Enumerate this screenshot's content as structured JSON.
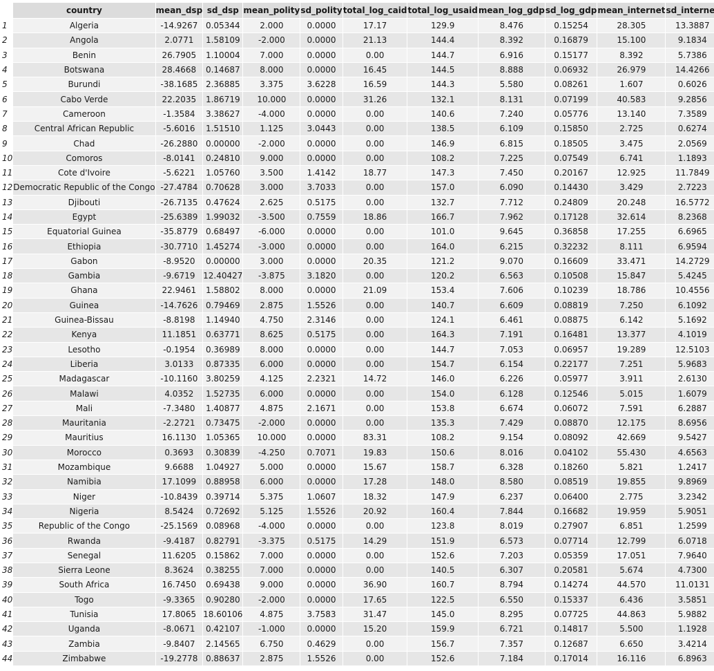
{
  "table": {
    "columns": [
      "country",
      "mean_dsp",
      "sd_dsp",
      "mean_polity",
      "sd_polity",
      "total_log_caid",
      "total_log_usaid",
      "mean_log_gdp",
      "sd_log_gdp",
      "mean_internet",
      "sd_internet"
    ],
    "rows": [
      [
        "1",
        "Algeria",
        "-14.9267",
        "0.05344",
        "2.000",
        "0.0000",
        "17.17",
        "129.9",
        "8.476",
        "0.15254",
        "28.305",
        "13.3887"
      ],
      [
        "2",
        "Angola",
        "2.0771",
        "1.58109",
        "-2.000",
        "0.0000",
        "21.13",
        "144.4",
        "8.392",
        "0.16879",
        "15.100",
        "9.1834"
      ],
      [
        "3",
        "Benin",
        "26.7905",
        "1.10004",
        "7.000",
        "0.0000",
        "0.00",
        "144.7",
        "6.916",
        "0.15177",
        "8.392",
        "5.7386"
      ],
      [
        "4",
        "Botswana",
        "28.4668",
        "0.14687",
        "8.000",
        "0.0000",
        "16.45",
        "144.5",
        "8.888",
        "0.06932",
        "26.979",
        "14.4266"
      ],
      [
        "5",
        "Burundi",
        "-38.1685",
        "2.36885",
        "3.375",
        "3.6228",
        "16.59",
        "144.3",
        "5.580",
        "0.08261",
        "1.607",
        "0.6026"
      ],
      [
        "6",
        "Cabo Verde",
        "22.2035",
        "1.86719",
        "10.000",
        "0.0000",
        "31.26",
        "132.1",
        "8.131",
        "0.07199",
        "40.583",
        "9.2856"
      ],
      [
        "7",
        "Cameroon",
        "-1.3584",
        "3.38627",
        "-4.000",
        "0.0000",
        "0.00",
        "140.6",
        "7.240",
        "0.05776",
        "13.140",
        "7.3589"
      ],
      [
        "8",
        "Central African Republic",
        "-5.6016",
        "1.51510",
        "1.125",
        "3.0443",
        "0.00",
        "138.5",
        "6.109",
        "0.15850",
        "2.725",
        "0.6274"
      ],
      [
        "9",
        "Chad",
        "-26.2880",
        "0.00000",
        "-2.000",
        "0.0000",
        "0.00",
        "146.9",
        "6.815",
        "0.18505",
        "3.475",
        "2.0569"
      ],
      [
        "10",
        "Comoros",
        "-8.0141",
        "0.24810",
        "9.000",
        "0.0000",
        "0.00",
        "108.2",
        "7.225",
        "0.07549",
        "6.741",
        "1.1893"
      ],
      [
        "11",
        "Cote d'Ivoire",
        "-5.6221",
        "1.05760",
        "3.500",
        "1.4142",
        "18.77",
        "147.3",
        "7.450",
        "0.20167",
        "12.925",
        "11.7849"
      ],
      [
        "12",
        "Democratic Republic of the Congo",
        "-27.4784",
        "0.70628",
        "3.000",
        "3.7033",
        "0.00",
        "157.0",
        "6.090",
        "0.14430",
        "3.429",
        "2.7223"
      ],
      [
        "13",
        "Djibouti",
        "-26.7135",
        "0.47624",
        "2.625",
        "0.5175",
        "0.00",
        "132.7",
        "7.712",
        "0.24809",
        "20.248",
        "16.5772"
      ],
      [
        "14",
        "Egypt",
        "-25.6389",
        "1.99032",
        "-3.500",
        "0.7559",
        "18.86",
        "166.7",
        "7.962",
        "0.17128",
        "32.614",
        "8.2368"
      ],
      [
        "15",
        "Equatorial Guinea",
        "-35.8779",
        "0.68497",
        "-6.000",
        "0.0000",
        "0.00",
        "101.0",
        "9.645",
        "0.36858",
        "17.255",
        "6.6965"
      ],
      [
        "16",
        "Ethiopia",
        "-30.7710",
        "1.45274",
        "-3.000",
        "0.0000",
        "0.00",
        "164.0",
        "6.215",
        "0.32232",
        "8.111",
        "6.9594"
      ],
      [
        "17",
        "Gabon",
        "-8.9520",
        "0.00000",
        "3.000",
        "0.0000",
        "20.35",
        "121.2",
        "9.070",
        "0.16609",
        "33.471",
        "14.2729"
      ],
      [
        "18",
        "Gambia",
        "-9.6719",
        "12.40427",
        "-3.875",
        "3.1820",
        "0.00",
        "120.2",
        "6.563",
        "0.10508",
        "15.847",
        "5.4245"
      ],
      [
        "19",
        "Ghana",
        "22.9461",
        "1.58802",
        "8.000",
        "0.0000",
        "21.09",
        "153.4",
        "7.606",
        "0.10239",
        "18.786",
        "10.4556"
      ],
      [
        "20",
        "Guinea",
        "-14.7626",
        "0.79469",
        "2.875",
        "1.5526",
        "0.00",
        "140.7",
        "6.609",
        "0.08819",
        "7.250",
        "6.1092"
      ],
      [
        "21",
        "Guinea-Bissau",
        "-8.8198",
        "1.14940",
        "4.750",
        "2.3146",
        "0.00",
        "124.1",
        "6.461",
        "0.08875",
        "6.142",
        "5.1692"
      ],
      [
        "22",
        "Kenya",
        "11.1851",
        "0.63771",
        "8.625",
        "0.5175",
        "0.00",
        "164.3",
        "7.191",
        "0.16481",
        "13.377",
        "4.1019"
      ],
      [
        "23",
        "Lesotho",
        "-0.1954",
        "0.36989",
        "8.000",
        "0.0000",
        "0.00",
        "144.7",
        "7.053",
        "0.06957",
        "19.289",
        "12.5103"
      ],
      [
        "24",
        "Liberia",
        "3.0133",
        "0.87335",
        "6.000",
        "0.0000",
        "0.00",
        "154.7",
        "6.154",
        "0.22177",
        "7.251",
        "5.9683"
      ],
      [
        "25",
        "Madagascar",
        "-10.1160",
        "3.80259",
        "4.125",
        "2.2321",
        "14.72",
        "146.0",
        "6.226",
        "0.05977",
        "3.911",
        "2.6130"
      ],
      [
        "26",
        "Malawi",
        "4.0352",
        "1.52735",
        "6.000",
        "0.0000",
        "0.00",
        "154.0",
        "6.128",
        "0.12546",
        "5.015",
        "1.6079"
      ],
      [
        "27",
        "Mali",
        "-7.3480",
        "1.40877",
        "4.875",
        "2.1671",
        "0.00",
        "153.8",
        "6.674",
        "0.06072",
        "7.591",
        "6.2887"
      ],
      [
        "28",
        "Mauritania",
        "-2.2721",
        "0.73475",
        "-2.000",
        "0.0000",
        "0.00",
        "135.3",
        "7.429",
        "0.08870",
        "12.175",
        "8.6956"
      ],
      [
        "29",
        "Mauritius",
        "16.1130",
        "1.05365",
        "10.000",
        "0.0000",
        "83.31",
        "108.2",
        "9.154",
        "0.08092",
        "42.669",
        "9.5427"
      ],
      [
        "30",
        "Morocco",
        "0.3693",
        "0.30839",
        "-4.250",
        "0.7071",
        "19.83",
        "150.6",
        "8.016",
        "0.04102",
        "55.430",
        "4.6563"
      ],
      [
        "31",
        "Mozambique",
        "9.6688",
        "1.04927",
        "5.000",
        "0.0000",
        "15.67",
        "158.7",
        "6.328",
        "0.18260",
        "5.821",
        "1.2417"
      ],
      [
        "32",
        "Namibia",
        "17.1099",
        "0.88958",
        "6.000",
        "0.0000",
        "17.28",
        "148.0",
        "8.580",
        "0.08519",
        "19.855",
        "9.8969"
      ],
      [
        "33",
        "Niger",
        "-10.8439",
        "0.39714",
        "5.375",
        "1.0607",
        "18.32",
        "147.9",
        "6.237",
        "0.06400",
        "2.775",
        "3.2342"
      ],
      [
        "34",
        "Nigeria",
        "8.5424",
        "0.72692",
        "5.125",
        "1.5526",
        "20.92",
        "160.4",
        "7.844",
        "0.16682",
        "19.959",
        "5.9051"
      ],
      [
        "35",
        "Republic of the Congo",
        "-25.1569",
        "0.08968",
        "-4.000",
        "0.0000",
        "0.00",
        "123.8",
        "8.019",
        "0.27907",
        "6.851",
        "1.2599"
      ],
      [
        "36",
        "Rwanda",
        "-9.4187",
        "0.82791",
        "-3.375",
        "0.5175",
        "14.29",
        "151.9",
        "6.573",
        "0.07714",
        "12.799",
        "6.0718"
      ],
      [
        "37",
        "Senegal",
        "11.6205",
        "0.15862",
        "7.000",
        "0.0000",
        "0.00",
        "152.6",
        "7.203",
        "0.05359",
        "17.051",
        "7.9640"
      ],
      [
        "38",
        "Sierra Leone",
        "8.3624",
        "0.38255",
        "7.000",
        "0.0000",
        "0.00",
        "140.5",
        "6.307",
        "0.20581",
        "5.674",
        "4.7300"
      ],
      [
        "39",
        "South Africa",
        "16.7450",
        "0.69438",
        "9.000",
        "0.0000",
        "36.90",
        "160.7",
        "8.794",
        "0.14274",
        "44.570",
        "11.0131"
      ],
      [
        "40",
        "Togo",
        "-9.3365",
        "0.90280",
        "-2.000",
        "0.0000",
        "17.65",
        "122.5",
        "6.550",
        "0.15337",
        "6.436",
        "3.5851"
      ],
      [
        "41",
        "Tunisia",
        "17.8065",
        "18.60106",
        "4.875",
        "3.7583",
        "31.47",
        "145.0",
        "8.295",
        "0.07725",
        "44.863",
        "5.9882"
      ],
      [
        "42",
        "Uganda",
        "-8.0671",
        "0.42107",
        "-1.000",
        "0.0000",
        "15.20",
        "159.9",
        "6.721",
        "0.14817",
        "5.500",
        "1.1928"
      ],
      [
        "43",
        "Zambia",
        "-9.8407",
        "2.14565",
        "6.750",
        "0.4629",
        "0.00",
        "156.7",
        "7.357",
        "0.12687",
        "6.650",
        "3.4214"
      ],
      [
        "44",
        "Zimbabwe",
        "-19.2778",
        "0.88637",
        "2.875",
        "1.5526",
        "0.00",
        "152.6",
        "7.184",
        "0.17014",
        "16.116",
        "6.8963"
      ]
    ]
  }
}
